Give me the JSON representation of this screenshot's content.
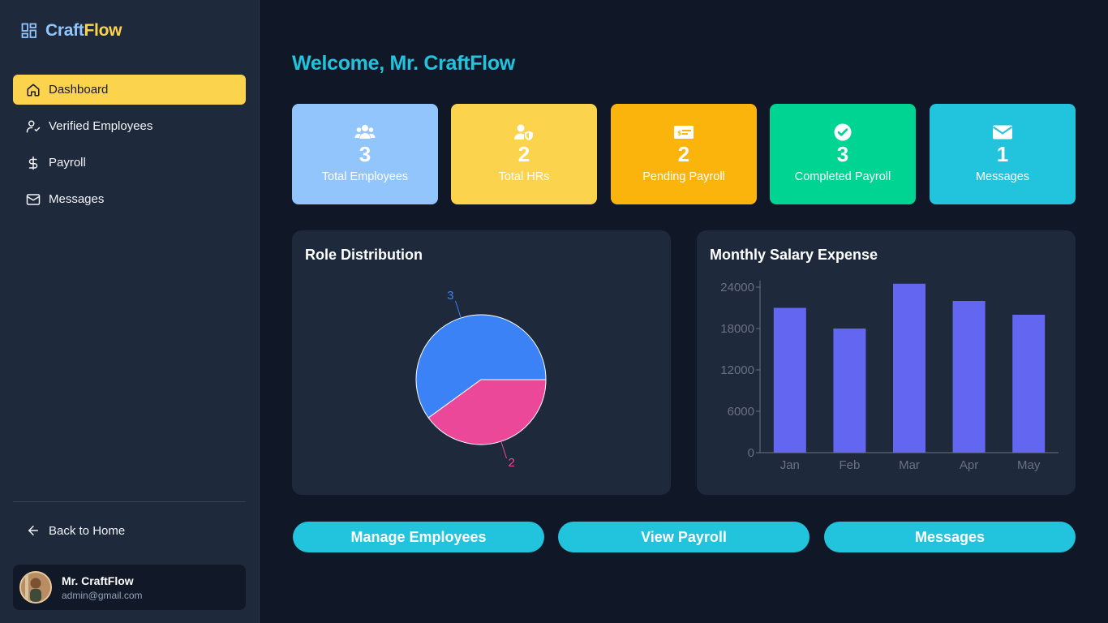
{
  "app": {
    "name_part1": "Craft",
    "name_part2": "Flow"
  },
  "sidebar": {
    "items": [
      {
        "label": "Dashboard",
        "icon": "home-icon",
        "active": true
      },
      {
        "label": "Verified Employees",
        "icon": "user-check-icon",
        "active": false
      },
      {
        "label": "Payroll",
        "icon": "dollar-icon",
        "active": false
      },
      {
        "label": "Messages",
        "icon": "mail-icon",
        "active": false
      }
    ],
    "back_home": "Back to Home",
    "user": {
      "name": "Mr. CraftFlow",
      "email": "admin@gmail.com"
    }
  },
  "main": {
    "welcome": "Welcome, Mr. CraftFlow",
    "stats": [
      {
        "value": "3",
        "label": "Total Employees",
        "color": "#93c5fd",
        "icon": "users-icon"
      },
      {
        "value": "2",
        "label": "Total HRs",
        "color": "#fcd34d",
        "icon": "user-shield-icon"
      },
      {
        "value": "2",
        "label": "Pending Payroll",
        "color": "#fbb40c",
        "icon": "money-check-icon"
      },
      {
        "value": "3",
        "label": "Completed Payroll",
        "color": "#00d492",
        "icon": "check-circle-icon"
      },
      {
        "value": "1",
        "label": "Messages",
        "color": "#22c3dc",
        "icon": "envelope-icon"
      }
    ],
    "role_chart": {
      "title": "Role Distribution"
    },
    "salary_chart": {
      "title": "Monthly Salary Expense"
    },
    "actions": [
      "Manage Employees",
      "View Payroll",
      "Messages"
    ]
  },
  "chart_data": [
    {
      "type": "pie",
      "title": "Role Distribution",
      "values": [
        3,
        2
      ],
      "labels": [
        "3",
        "2"
      ],
      "colors": [
        "#3b82f6",
        "#ec4899"
      ]
    },
    {
      "type": "bar",
      "title": "Monthly Salary Expense",
      "categories": [
        "Jan",
        "Feb",
        "Mar",
        "Apr",
        "May"
      ],
      "values": [
        21000,
        18000,
        24500,
        22000,
        20000
      ],
      "yticks": [
        0,
        6000,
        12000,
        18000,
        24000
      ],
      "ylim": [
        0,
        24000
      ],
      "color": "#6366f1"
    }
  ]
}
